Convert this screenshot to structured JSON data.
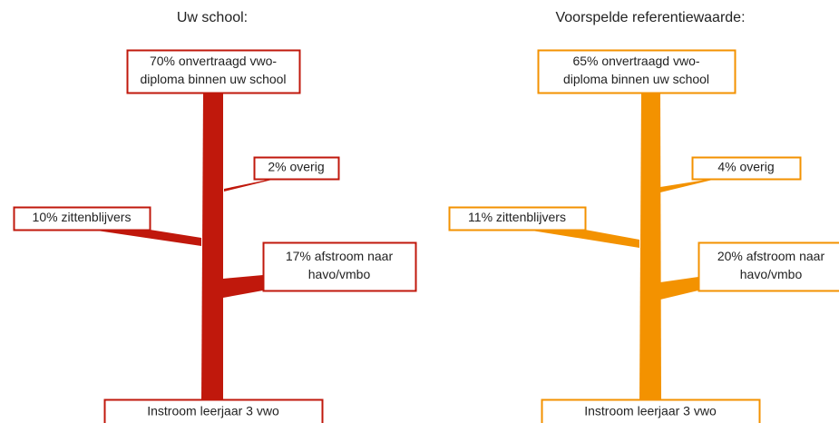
{
  "panels": [
    {
      "title": "Uw school:",
      "top": [
        "70% onvertraagd vwo-",
        "diploma binnen uw school"
      ],
      "other": "2% overig",
      "repeaters": "10% zittenblijvers",
      "downflow": [
        "17% afstroom naar",
        "havo/vmbo"
      ],
      "bottom": "Instroom leerjaar 3 vwo"
    },
    {
      "title": "Voorspelde referentiewaarde:",
      "top": [
        "65% onvertraagd vwo-",
        "diploma binnen uw school"
      ],
      "other": "4% overig",
      "repeaters": "11% zittenblijvers",
      "downflow": [
        "20% afstroom naar",
        "havo/vmbo"
      ],
      "bottom": "Instroom leerjaar 3 vwo"
    }
  ]
}
